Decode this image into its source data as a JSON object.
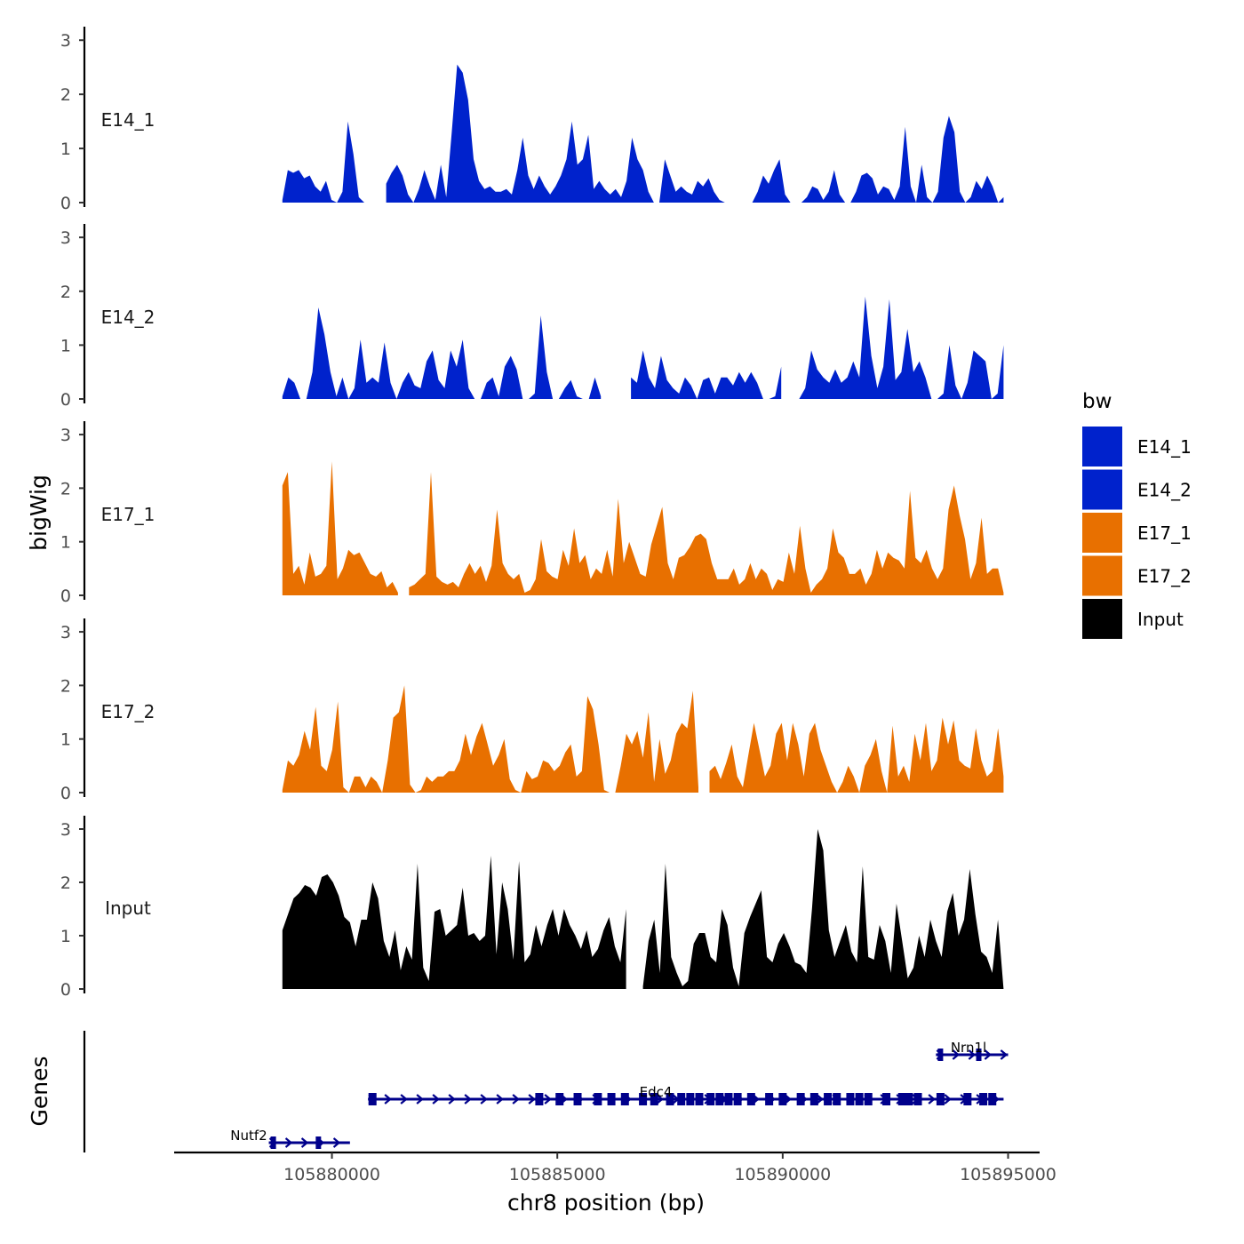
{
  "chart_data": {
    "type": "area",
    "ylabel": "bigWig",
    "xlabel": "chr8 position (bp)",
    "xlim": [
      105876500,
      105895700
    ],
    "x_ticks": [
      105880000,
      105885000,
      105890000,
      105895000
    ],
    "x_tick_labels": [
      "105880000",
      "105885000",
      "105890000",
      "105895000"
    ],
    "ylim": [
      0,
      3.2
    ],
    "y_ticks": [
      0,
      1,
      2,
      3
    ],
    "y_tick_labels": [
      "0",
      "1",
      "2",
      "3"
    ],
    "x_start": 105878900,
    "x_end": 105894900,
    "series": [
      {
        "name": "E14_1",
        "label": "E14_1",
        "color": "#0022cc",
        "values": [
          0.05,
          0.6,
          0.55,
          0.6,
          0.45,
          0.5,
          0.3,
          0.2,
          0.4,
          0.05,
          0.0,
          0.2,
          1.5,
          0.9,
          0.1,
          0.0,
          0.0,
          0.0,
          0.0,
          0.35,
          0.55,
          0.7,
          0.5,
          0.15,
          0.0,
          0.25,
          0.6,
          0.3,
          0.05,
          0.7,
          0.1,
          1.3,
          2.55,
          2.4,
          1.9,
          0.8,
          0.4,
          0.25,
          0.3,
          0.2,
          0.2,
          0.25,
          0.15,
          0.6,
          1.2,
          0.5,
          0.25,
          0.5,
          0.3,
          0.15,
          0.3,
          0.5,
          0.8,
          1.5,
          0.7,
          0.8,
          1.25,
          0.25,
          0.4,
          0.25,
          0.15,
          0.25,
          0.1,
          0.4,
          1.2,
          0.8,
          0.6,
          0.2,
          0.0,
          0.0,
          0.8,
          0.5,
          0.2,
          0.3,
          0.2,
          0.15,
          0.4,
          0.3,
          0.45,
          0.2,
          0.05,
          0.0,
          0.0,
          0.3,
          0.1,
          0.0,
          0.0,
          0.2,
          0.5,
          0.35,
          0.6,
          0.8,
          0.15,
          0.0,
          0.0,
          0.0,
          0.1,
          0.3,
          0.25,
          0.05,
          0.2,
          0.6,
          0.15,
          0.0,
          0.0,
          0.2,
          0.5,
          0.55,
          0.45,
          0.15,
          0.3,
          0.25,
          0.05,
          0.3,
          1.4,
          0.3,
          0.0,
          0.7,
          0.1,
          0.0,
          0.2,
          1.2,
          1.6,
          1.3,
          0.2,
          0.0,
          0.1,
          0.4,
          0.25,
          0.5,
          0.3,
          0.0,
          0.1
        ],
        "nulls": [
          17,
          18,
          82,
          83,
          84,
          85
        ]
      },
      {
        "name": "E14_2",
        "label": "E14_2",
        "color": "#0022cc",
        "values": [
          0.05,
          0.4,
          0.3,
          0.0,
          0.0,
          0.5,
          1.7,
          1.2,
          0.5,
          0.05,
          0.4,
          0.0,
          0.2,
          1.1,
          0.3,
          0.4,
          0.3,
          1.05,
          0.3,
          0.0,
          0.3,
          0.5,
          0.25,
          0.2,
          0.7,
          0.9,
          0.35,
          0.2,
          0.9,
          0.6,
          1.1,
          0.2,
          0.0,
          0.0,
          0.3,
          0.4,
          0.05,
          0.6,
          0.8,
          0.55,
          0.0,
          0.0,
          0.1,
          1.55,
          0.5,
          0.0,
          0.0,
          0.2,
          0.35,
          0.05,
          0.0,
          0.0,
          0.4,
          0.05,
          0.0,
          0.0,
          0.0,
          0.0,
          0.4,
          0.3,
          0.9,
          0.4,
          0.2,
          0.8,
          0.35,
          0.2,
          0.1,
          0.4,
          0.25,
          0.0,
          0.35,
          0.4,
          0.1,
          0.4,
          0.4,
          0.25,
          0.5,
          0.3,
          0.5,
          0.3,
          0.0,
          0.0,
          0.05,
          0.6,
          0.1,
          0.0,
          0.0,
          0.2,
          0.9,
          0.55,
          0.4,
          0.3,
          0.55,
          0.3,
          0.4,
          0.7,
          0.4,
          1.9,
          0.8,
          0.2,
          0.6,
          1.85,
          0.35,
          0.5,
          1.3,
          0.5,
          0.7,
          0.4,
          0.0,
          0.0,
          0.1,
          1.0,
          0.25,
          0.0,
          0.3,
          0.9,
          0.8,
          0.7,
          0.0,
          0.1,
          1.0
        ],
        "nulls": [
          54,
          55,
          56,
          57,
          84,
          85
        ]
      },
      {
        "name": "E17_1",
        "label": "E17_1",
        "color": "#e87000",
        "values": [
          2.05,
          2.3,
          0.4,
          0.55,
          0.2,
          0.8,
          0.35,
          0.4,
          0.55,
          2.5,
          0.3,
          0.5,
          0.85,
          0.75,
          0.8,
          0.6,
          0.4,
          0.35,
          0.45,
          0.15,
          0.25,
          0.05,
          0.0,
          0.15,
          0.2,
          0.3,
          0.4,
          2.3,
          0.35,
          0.25,
          0.2,
          0.25,
          0.15,
          0.4,
          0.6,
          0.4,
          0.55,
          0.25,
          0.55,
          1.6,
          0.6,
          0.4,
          0.3,
          0.4,
          0.05,
          0.1,
          0.3,
          1.05,
          0.45,
          0.35,
          0.3,
          0.85,
          0.55,
          1.25,
          0.6,
          0.75,
          0.3,
          0.5,
          0.4,
          0.85,
          0.35,
          1.8,
          0.6,
          1.0,
          0.7,
          0.4,
          0.35,
          0.95,
          1.3,
          1.65,
          0.6,
          0.3,
          0.7,
          0.75,
          0.9,
          1.1,
          1.15,
          1.05,
          0.6,
          0.3,
          0.3,
          0.3,
          0.5,
          0.2,
          0.3,
          0.6,
          0.3,
          0.5,
          0.4,
          0.1,
          0.3,
          0.25,
          0.8,
          0.4,
          1.3,
          0.5,
          0.05,
          0.2,
          0.3,
          0.5,
          1.25,
          0.8,
          0.7,
          0.4,
          0.4,
          0.5,
          0.2,
          0.4,
          0.85,
          0.5,
          0.8,
          0.7,
          0.65,
          0.5,
          1.95,
          0.7,
          0.6,
          0.85,
          0.5,
          0.3,
          0.5,
          1.6,
          2.05,
          1.5,
          1.05,
          0.3,
          0.6,
          1.45,
          0.4,
          0.5,
          0.5,
          0.05
        ],
        "nulls": [
          22
        ]
      },
      {
        "name": "E17_2",
        "label": "E17_2",
        "color": "#e87000",
        "values": [
          0.05,
          0.6,
          0.5,
          0.7,
          1.15,
          0.8,
          1.6,
          0.5,
          0.4,
          0.8,
          1.7,
          0.1,
          0.0,
          0.3,
          0.3,
          0.1,
          0.3,
          0.2,
          0.0,
          0.6,
          1.4,
          1.5,
          2.0,
          0.15,
          0.0,
          0.05,
          0.3,
          0.2,
          0.3,
          0.3,
          0.4,
          0.4,
          0.6,
          1.1,
          0.7,
          1.05,
          1.3,
          0.9,
          0.5,
          0.7,
          1.0,
          0.25,
          0.05,
          0.0,
          0.4,
          0.25,
          0.3,
          0.6,
          0.55,
          0.4,
          0.5,
          0.75,
          0.9,
          0.3,
          0.4,
          1.8,
          1.55,
          0.9,
          0.05,
          0.0,
          0.0,
          0.5,
          1.1,
          0.9,
          1.15,
          0.65,
          1.5,
          0.2,
          1.0,
          0.35,
          0.6,
          1.1,
          1.3,
          1.2,
          1.9,
          0.1,
          0.0,
          0.4,
          0.5,
          0.25,
          0.55,
          0.9,
          0.3,
          0.1,
          0.7,
          1.3,
          0.8,
          0.3,
          0.5,
          1.1,
          1.3,
          0.6,
          1.3,
          0.9,
          0.3,
          1.1,
          1.3,
          0.8,
          0.5,
          0.2,
          0.0,
          0.2,
          0.5,
          0.3,
          0.0,
          0.5,
          0.7,
          1.0,
          0.4,
          0.0,
          1.25,
          0.3,
          0.5,
          0.2,
          1.1,
          0.6,
          1.3,
          0.4,
          0.6,
          1.4,
          0.9,
          1.35,
          0.6,
          0.5,
          0.45,
          1.2,
          0.6,
          0.3,
          0.4,
          1.2,
          0.3
        ],
        "nulls": [
          76
        ]
      },
      {
        "name": "Input",
        "label": "Input",
        "color": "#000000",
        "values": [
          1.1,
          1.4,
          1.7,
          1.8,
          1.95,
          1.9,
          1.75,
          2.1,
          2.15,
          2.0,
          1.75,
          1.35,
          1.25,
          0.8,
          1.3,
          1.3,
          2.0,
          1.7,
          0.9,
          0.6,
          1.1,
          0.35,
          0.8,
          0.55,
          2.35,
          0.4,
          0.15,
          1.45,
          1.5,
          1.0,
          1.1,
          1.2,
          1.9,
          1.0,
          1.05,
          0.9,
          1.0,
          2.5,
          0.65,
          2.0,
          1.5,
          0.55,
          2.4,
          0.5,
          0.65,
          1.2,
          0.8,
          1.2,
          1.5,
          1.0,
          1.5,
          1.2,
          1.0,
          0.75,
          1.1,
          0.6,
          0.75,
          1.1,
          1.35,
          0.8,
          0.5,
          1.5,
          0.4,
          0.1,
          0.05,
          0.9,
          1.3,
          0.3,
          2.35,
          0.6,
          0.3,
          0.05,
          0.15,
          0.85,
          1.05,
          1.05,
          0.6,
          0.5,
          1.5,
          1.2,
          0.4,
          0.05,
          1.05,
          1.35,
          1.6,
          1.85,
          0.6,
          0.5,
          0.85,
          1.05,
          0.8,
          0.5,
          0.45,
          0.3,
          1.5,
          3.0,
          2.6,
          1.1,
          0.6,
          0.9,
          1.2,
          0.7,
          0.5,
          2.3,
          0.6,
          0.55,
          1.2,
          0.9,
          0.3,
          1.6,
          0.9,
          0.2,
          0.4,
          1.0,
          0.6,
          1.3,
          0.9,
          0.6,
          1.45,
          1.8,
          1.0,
          1.3,
          2.25,
          1.4,
          0.7,
          0.6,
          0.3,
          1.3,
          0.0
        ],
        "nulls": [
          62,
          63
        ]
      }
    ],
    "genes_track": {
      "label": "Genes",
      "color": "#00008b",
      "genes": [
        {
          "name": "Nutf2",
          "start": 105878600,
          "end": 105880400,
          "row": 0,
          "exons": [
            105878700,
            105879700
          ]
        },
        {
          "name": "Edc4",
          "start": 105880800,
          "end": 105894900,
          "row": 1,
          "exons": [
            105880900,
            105884600,
            105885050,
            105885450,
            105885900,
            105886200,
            105886500,
            105886900,
            105887150,
            105887500,
            105887750,
            105887950,
            105888150,
            105888400,
            105888600,
            105888800,
            105889000,
            105889300,
            105889700,
            105890000,
            105890400,
            105890700,
            105891000,
            105891200,
            105891500,
            105891700,
            105891900,
            105892300,
            105892650,
            105892800,
            105893000,
            105893500,
            105894100,
            105894450,
            105894650
          ]
        },
        {
          "name": "Nrn1l",
          "start": 105893400,
          "end": 105895000,
          "row": 2,
          "exons": [
            105893500,
            105894350
          ]
        }
      ]
    }
  },
  "legend": {
    "title": "bw",
    "items": [
      {
        "label": "E14_1",
        "color": "#0022cc"
      },
      {
        "label": "E14_2",
        "color": "#0022cc"
      },
      {
        "label": "E17_1",
        "color": "#e87000"
      },
      {
        "label": "E17_2",
        "color": "#e87000"
      },
      {
        "label": "Input",
        "color": "#000000"
      }
    ]
  }
}
